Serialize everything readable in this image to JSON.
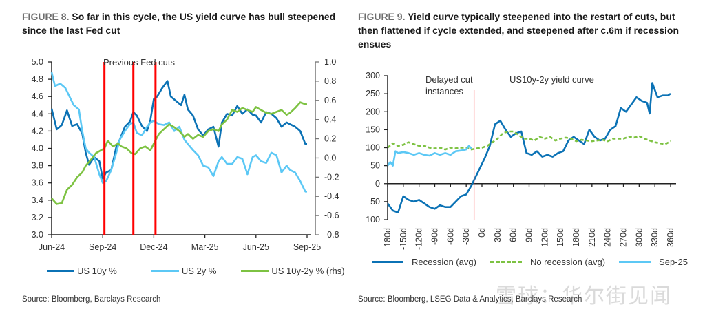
{
  "figures": [
    {
      "fig_label": "FIGURE 8.",
      "title": "So far in this cycle, the US yield curve has bull steepened since the last Fed cut",
      "source": "Source: Bloomberg, Barclays Research",
      "legend": [
        {
          "label": "US 10y %",
          "color": "#0b72b5",
          "style": "solid"
        },
        {
          "label": "US 2y %",
          "color": "#5cc8f5",
          "style": "solid"
        },
        {
          "label": "US 10y-2y % (rhs)",
          "color": "#7dc242",
          "style": "solid"
        }
      ]
    },
    {
      "fig_label": "FIGURE 9.",
      "title": "Yield curve typically steepened into the restart of cuts, but then flattened if cycle extended, and steepened after c.6m if recession ensues",
      "source": "Source: Bloomberg, LSEG Data & Analytics, Barclays Research",
      "legend": [
        {
          "label": "Recession (avg)",
          "color": "#0b72b5",
          "style": "solid"
        },
        {
          "label": "No recession (avg)",
          "color": "#7dc242",
          "style": "dashed"
        },
        {
          "label": "Sep-25",
          "color": "#5cc8f5",
          "style": "solid"
        }
      ]
    }
  ],
  "watermark": "雪球：华尔街见闻",
  "chart_data": [
    {
      "type": "line",
      "title": "So far in this cycle, the US yield curve has bull steepened since the last Fed cut",
      "xlabel": "",
      "ylabel": "",
      "x_ticks": [
        "Jun-24",
        "Sep-24",
        "Dec-24",
        "Mar-25",
        "Jun-25",
        "Sep-25"
      ],
      "x_range_months": [
        0,
        15
      ],
      "y_left": {
        "ticks": [
          "5.0",
          "4.8",
          "4.6",
          "4.4",
          "4.2",
          "4.0",
          "3.8",
          "3.6",
          "3.4",
          "3.2",
          "3.0"
        ],
        "range": [
          3.0,
          5.0
        ]
      },
      "y_right": {
        "ticks": [
          "1.0",
          "0.8",
          "0.6",
          "0.4",
          "0.2",
          "0.0",
          "-0.2",
          "-0.4",
          "-0.6",
          "-0.8"
        ],
        "range": [
          -0.8,
          1.0
        ]
      },
      "annotation": "Previous Fed cuts",
      "vlines_months": [
        3.1,
        4.8,
        6.1
      ],
      "vline_color": "#ff0000",
      "grid": false,
      "legend_position": "bottom",
      "series": [
        {
          "name": "US 10y %",
          "axis": "left",
          "color": "#0b72b5",
          "x": [
            0,
            0.3,
            0.6,
            0.9,
            1.2,
            1.5,
            1.8,
            2.0,
            2.2,
            2.5,
            2.8,
            3.0,
            3.2,
            3.5,
            3.8,
            4.0,
            4.3,
            4.6,
            4.8,
            5.0,
            5.3,
            5.6,
            5.8,
            6.0,
            6.2,
            6.5,
            6.8,
            7.0,
            7.3,
            7.6,
            7.8,
            8.0,
            8.3,
            8.6,
            8.9,
            9.2,
            9.5,
            9.8,
            10.0,
            10.3,
            10.6,
            10.9,
            11.2,
            11.5,
            11.8,
            12.0,
            12.3,
            12.6,
            12.9,
            13.2,
            13.5,
            13.8,
            14.0,
            14.3,
            14.6,
            14.9,
            15.0
          ],
          "values": [
            4.46,
            4.22,
            4.27,
            4.44,
            4.26,
            4.28,
            4.17,
            3.95,
            3.81,
            3.9,
            3.85,
            3.65,
            3.72,
            3.75,
            4.02,
            4.1,
            4.25,
            4.31,
            4.42,
            4.38,
            4.26,
            4.2,
            4.33,
            4.57,
            4.6,
            4.7,
            4.78,
            4.6,
            4.55,
            4.5,
            4.62,
            4.45,
            4.38,
            4.22,
            4.15,
            4.22,
            4.25,
            4.02,
            4.3,
            4.4,
            4.38,
            4.49,
            4.4,
            4.45,
            4.39,
            4.38,
            4.3,
            4.42,
            4.4,
            4.35,
            4.25,
            4.3,
            4.28,
            4.25,
            4.2,
            4.05,
            4.05
          ]
        },
        {
          "name": "US 2y %",
          "axis": "left",
          "color": "#5cc8f5",
          "x": [
            0,
            0.2,
            0.5,
            0.8,
            1.0,
            1.3,
            1.6,
            1.8,
            2.0,
            2.2,
            2.5,
            2.8,
            3.0,
            3.2,
            3.5,
            3.8,
            4.0,
            4.3,
            4.6,
            4.8,
            5.0,
            5.3,
            5.6,
            5.8,
            6.0,
            6.3,
            6.6,
            6.9,
            7.2,
            7.5,
            7.8,
            8.0,
            8.3,
            8.6,
            8.9,
            9.2,
            9.5,
            9.8,
            10.0,
            10.3,
            10.6,
            10.9,
            11.2,
            11.5,
            11.8,
            12.0,
            12.3,
            12.6,
            12.9,
            13.2,
            13.5,
            13.8,
            14.0,
            14.3,
            14.6,
            14.9,
            15.0
          ],
          "values": [
            4.88,
            4.72,
            4.75,
            4.7,
            4.62,
            4.5,
            4.45,
            4.2,
            4.0,
            3.95,
            3.9,
            3.7,
            3.6,
            3.62,
            3.75,
            3.95,
            4.1,
            4.2,
            4.28,
            4.3,
            4.18,
            4.15,
            4.25,
            4.3,
            4.32,
            4.28,
            4.27,
            4.3,
            4.2,
            4.25,
            4.1,
            4.05,
            3.98,
            3.92,
            3.8,
            3.78,
            3.68,
            3.85,
            3.9,
            3.82,
            3.82,
            3.9,
            3.88,
            3.7,
            3.9,
            3.92,
            3.85,
            3.83,
            3.95,
            3.92,
            3.72,
            3.8,
            3.75,
            3.72,
            3.62,
            3.5,
            3.5
          ]
        },
        {
          "name": "US 10y-2y % (rhs)",
          "axis": "right",
          "color": "#7dc242",
          "x": [
            0,
            0.3,
            0.6,
            0.9,
            1.2,
            1.5,
            1.8,
            2.0,
            2.3,
            2.6,
            2.9,
            3.1,
            3.3,
            3.6,
            3.9,
            4.1,
            4.4,
            4.7,
            4.9,
            5.2,
            5.5,
            5.8,
            6.0,
            6.3,
            6.6,
            6.9,
            7.2,
            7.5,
            7.8,
            8.0,
            8.3,
            8.6,
            8.9,
            9.2,
            9.5,
            9.8,
            10.0,
            10.3,
            10.6,
            10.9,
            11.2,
            11.5,
            11.8,
            12.0,
            12.3,
            12.6,
            12.9,
            13.2,
            13.5,
            13.8,
            14.0,
            14.3,
            14.6,
            14.9,
            15.0
          ],
          "values": [
            -0.42,
            -0.48,
            -0.47,
            -0.33,
            -0.28,
            -0.2,
            -0.15,
            -0.08,
            -0.02,
            0.05,
            0.08,
            0.1,
            0.18,
            0.12,
            0.15,
            0.12,
            0.1,
            0.05,
            0.04,
            0.1,
            0.12,
            0.08,
            0.15,
            0.25,
            0.3,
            0.35,
            0.32,
            0.28,
            0.22,
            0.25,
            0.2,
            0.24,
            0.22,
            0.28,
            0.3,
            0.28,
            0.35,
            0.4,
            0.5,
            0.48,
            0.52,
            0.5,
            0.48,
            0.53,
            0.5,
            0.47,
            0.46,
            0.48,
            0.5,
            0.45,
            0.47,
            0.52,
            0.58,
            0.56,
            0.56
          ]
        }
      ]
    },
    {
      "type": "line",
      "title": "Yield curve typically steepened into the restart of cuts, but then flattened if cycle extended, and steepened after c.6m if recession ensues",
      "xlabel": "",
      "ylabel": "",
      "x_ticks": [
        "-180d",
        "-150d",
        "-120d",
        "-90d",
        "-60d",
        "-30d",
        "0d",
        "30d",
        "60d",
        "90d",
        "120d",
        "150d",
        "180d",
        "210d",
        "240d",
        "270d",
        "300d",
        "330d",
        "360d"
      ],
      "x_range": [
        -180,
        360
      ],
      "y_ticks": [
        "300",
        "250",
        "200",
        "150",
        "100",
        "50",
        "0",
        "-50",
        "-100"
      ],
      "y_range": [
        -100,
        300
      ],
      "annotations": [
        "Delayed cut instances",
        "US10y-2y yield curve"
      ],
      "vline_x": -15,
      "vline_color": "#ff4d4d",
      "grid": false,
      "legend_position": "bottom",
      "series": [
        {
          "name": "Recession (avg)",
          "color": "#0b72b5",
          "style": "solid",
          "x": [
            -180,
            -170,
            -160,
            -150,
            -140,
            -130,
            -120,
            -110,
            -100,
            -90,
            -80,
            -70,
            -60,
            -50,
            -40,
            -30,
            -20,
            -15,
            -5,
            5,
            15,
            25,
            35,
            45,
            55,
            65,
            75,
            85,
            95,
            105,
            115,
            125,
            135,
            145,
            155,
            165,
            175,
            185,
            195,
            205,
            215,
            225,
            235,
            245,
            255,
            265,
            275,
            285,
            295,
            305,
            315,
            320,
            325,
            335,
            345,
            355,
            360
          ],
          "values": [
            -55,
            -75,
            -80,
            -35,
            -45,
            -50,
            -45,
            -55,
            -65,
            -70,
            -60,
            -65,
            -65,
            -50,
            -35,
            -30,
            -5,
            10,
            40,
            70,
            105,
            165,
            175,
            150,
            130,
            140,
            145,
            85,
            80,
            90,
            75,
            80,
            75,
            85,
            90,
            120,
            130,
            120,
            110,
            150,
            130,
            120,
            125,
            150,
            160,
            210,
            200,
            220,
            240,
            230,
            225,
            195,
            280,
            240,
            245,
            245,
            250
          ]
        },
        {
          "name": "No recession (avg)",
          "color": "#7dc242",
          "style": "dashed",
          "x": [
            -180,
            -170,
            -160,
            -150,
            -140,
            -130,
            -120,
            -110,
            -100,
            -90,
            -80,
            -70,
            -60,
            -50,
            -40,
            -30,
            -20,
            -10,
            0,
            10,
            20,
            30,
            40,
            50,
            60,
            70,
            80,
            90,
            100,
            110,
            120,
            130,
            140,
            150,
            160,
            170,
            180,
            190,
            200,
            210,
            220,
            230,
            240,
            250,
            260,
            270,
            280,
            290,
            300,
            310,
            320,
            330,
            340,
            350,
            360
          ],
          "values": [
            100,
            112,
            105,
            108,
            115,
            110,
            105,
            105,
            100,
            98,
            100,
            95,
            100,
            98,
            100,
            100,
            95,
            98,
            100,
            105,
            115,
            125,
            140,
            145,
            145,
            135,
            125,
            125,
            120,
            130,
            125,
            130,
            120,
            125,
            128,
            125,
            118,
            122,
            120,
            118,
            120,
            122,
            118,
            125,
            125,
            125,
            130,
            128,
            132,
            125,
            120,
            115,
            112,
            110,
            118
          ]
        },
        {
          "name": "Sep-25",
          "color": "#5cc8f5",
          "style": "solid",
          "x": [
            -180,
            -175,
            -170,
            -165,
            -160,
            -150,
            -140,
            -130,
            -120,
            -110,
            -100,
            -90,
            -80,
            -70,
            -60,
            -50,
            -40,
            -30,
            -25,
            -20
          ],
          "values": [
            50,
            60,
            50,
            90,
            85,
            88,
            85,
            80,
            85,
            80,
            78,
            85,
            80,
            85,
            80,
            90,
            92,
            95,
            105,
            98
          ]
        }
      ]
    }
  ]
}
